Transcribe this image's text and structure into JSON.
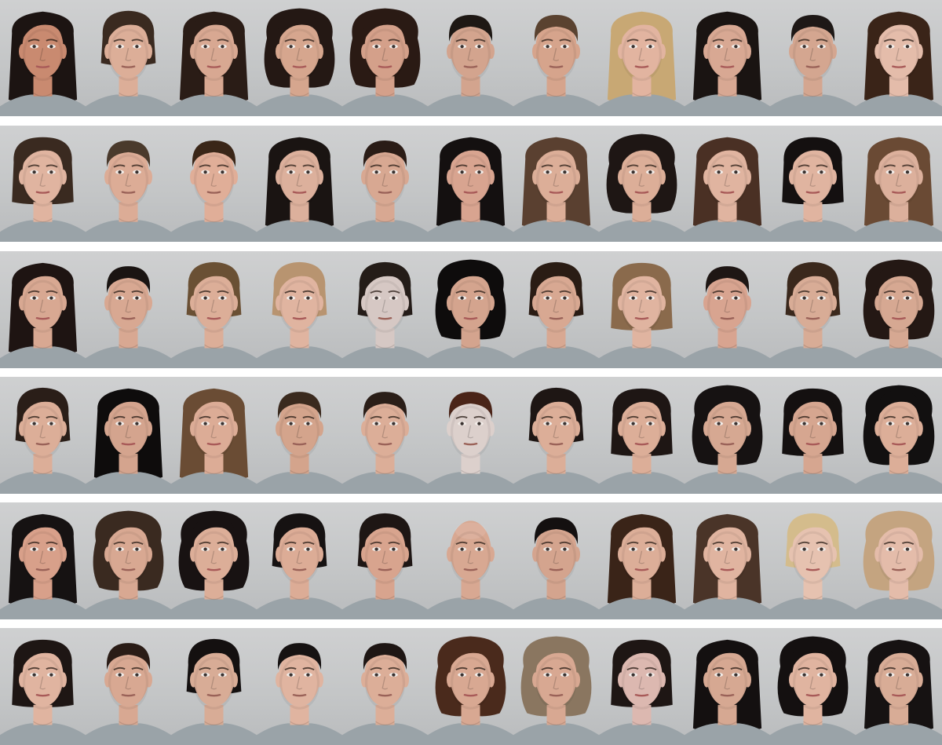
{
  "image": {
    "kind": "portrait-mosaic",
    "rows": 6,
    "columns": 11,
    "background_color": "#c8c9ca",
    "separator_color": "#ffffff",
    "shirt_color": "#9aa3a8"
  },
  "faces": [
    [
      {
        "sex": "f",
        "skin": "#c98a70",
        "hair": "#1c1412",
        "style": "long"
      },
      {
        "sex": "m",
        "skin": "#dcae98",
        "hair": "#3a2a20",
        "style": "medium"
      },
      {
        "sex": "f",
        "skin": "#d8a892",
        "hair": "#2a1c16",
        "style": "long"
      },
      {
        "sex": "f",
        "skin": "#d6a68e",
        "hair": "#241814",
        "style": "curly"
      },
      {
        "sex": "f",
        "skin": "#d4a08a",
        "hair": "#2a1a14",
        "style": "curly"
      },
      {
        "sex": "m",
        "skin": "#d3a48e",
        "hair": "#1e1814",
        "style": "short"
      },
      {
        "sex": "m",
        "skin": "#d6a48c",
        "hair": "#5a4230",
        "style": "short"
      },
      {
        "sex": "f",
        "skin": "#e2b4a0",
        "hair": "#c8a874",
        "style": "long"
      },
      {
        "sex": "f",
        "skin": "#d8a893",
        "hair": "#1a1412",
        "style": "long"
      },
      {
        "sex": "m",
        "skin": "#d4a690",
        "hair": "#1e1816",
        "style": "short"
      },
      {
        "sex": "f",
        "skin": "#e4bcaa",
        "hair": "#3a2418",
        "style": "long"
      }
    ],
    [
      {
        "sex": "f",
        "skin": "#e0b4a0",
        "hair": "#3a2a20",
        "style": "bob"
      },
      {
        "sex": "m",
        "skin": "#dcac96",
        "hair": "#4a3a2c",
        "style": "short"
      },
      {
        "sex": "m",
        "skin": "#e0ae98",
        "hair": "#3a2618",
        "style": "short"
      },
      {
        "sex": "f",
        "skin": "#dcb09c",
        "hair": "#1a1412",
        "style": "long"
      },
      {
        "sex": "m",
        "skin": "#d8a892",
        "hair": "#2a1c16",
        "style": "short"
      },
      {
        "sex": "f",
        "skin": "#d8a490",
        "hair": "#141010",
        "style": "long"
      },
      {
        "sex": "f",
        "skin": "#dcae98",
        "hair": "#5a4030",
        "style": "long"
      },
      {
        "sex": "f",
        "skin": "#dcae98",
        "hair": "#1e1614",
        "style": "curly"
      },
      {
        "sex": "f",
        "skin": "#e0b4a0",
        "hair": "#4a3024",
        "style": "long"
      },
      {
        "sex": "f",
        "skin": "#e0b4a0",
        "hair": "#141010",
        "style": "bob"
      },
      {
        "sex": "f",
        "skin": "#dcb09c",
        "hair": "#6a4a34",
        "style": "long"
      }
    ],
    [
      {
        "sex": "f",
        "skin": "#d8a892",
        "hair": "#1e1412",
        "style": "long"
      },
      {
        "sex": "m",
        "skin": "#d8a892",
        "hair": "#1a1412",
        "style": "short"
      },
      {
        "sex": "f",
        "skin": "#dcae98",
        "hair": "#6a5034",
        "style": "medium"
      },
      {
        "sex": "f",
        "skin": "#e0b4a0",
        "hair": "#b89470",
        "style": "medium"
      },
      {
        "sex": "m",
        "skin": "#d6c8c4",
        "hair": "#241c18",
        "style": "medium"
      },
      {
        "sex": "f",
        "skin": "#d4a48e",
        "hair": "#0e0c0c",
        "style": "curly"
      },
      {
        "sex": "m",
        "skin": "#d8a892",
        "hair": "#2a1c14",
        "style": "medium"
      },
      {
        "sex": "f",
        "skin": "#e0b4a0",
        "hair": "#8a6a4c",
        "style": "bob"
      },
      {
        "sex": "m",
        "skin": "#d8a490",
        "hair": "#1e1614",
        "style": "short"
      },
      {
        "sex": "m",
        "skin": "#d8ac96",
        "hair": "#3a281c",
        "style": "medium"
      },
      {
        "sex": "f",
        "skin": "#d6a892",
        "hair": "#241814",
        "style": "curly"
      }
    ],
    [
      {
        "sex": "m",
        "skin": "#dcae98",
        "hair": "#2a1e18",
        "style": "medium"
      },
      {
        "sex": "f",
        "skin": "#d4a48e",
        "hair": "#0e0c0c",
        "style": "long"
      },
      {
        "sex": "f",
        "skin": "#dcac96",
        "hair": "#6a4c34",
        "style": "long"
      },
      {
        "sex": "m",
        "skin": "#d4a48c",
        "hair": "#3a2a1e",
        "style": "short"
      },
      {
        "sex": "m",
        "skin": "#dcae98",
        "hair": "#2a1e18",
        "style": "short"
      },
      {
        "sex": "m",
        "skin": "#dcd0cc",
        "hair": "#4a2418",
        "style": "short"
      },
      {
        "sex": "m",
        "skin": "#dcae98",
        "hair": "#1e1614",
        "style": "medium"
      },
      {
        "sex": "f",
        "skin": "#dcae98",
        "hair": "#1e1614",
        "style": "bob"
      },
      {
        "sex": "m",
        "skin": "#d6a892",
        "hair": "#161212",
        "style": "curly"
      },
      {
        "sex": "f",
        "skin": "#d6a690",
        "hair": "#141010",
        "style": "bob"
      },
      {
        "sex": "f",
        "skin": "#dcae98",
        "hair": "#121010",
        "style": "curly"
      }
    ],
    [
      {
        "sex": "m",
        "skin": "#d8a08a",
        "hair": "#161212",
        "style": "long"
      },
      {
        "sex": "m",
        "skin": "#d8a892",
        "hair": "#3a2a20",
        "style": "curly"
      },
      {
        "sex": "f",
        "skin": "#dcae98",
        "hair": "#181212",
        "style": "curly"
      },
      {
        "sex": "m",
        "skin": "#dcac96",
        "hair": "#161212",
        "style": "medium"
      },
      {
        "sex": "m",
        "skin": "#d8a48e",
        "hair": "#1e1614",
        "style": "medium"
      },
      {
        "sex": "m",
        "skin": "#d8a892",
        "hair": "#d8a892",
        "style": "bald"
      },
      {
        "sex": "m",
        "skin": "#d4a48e",
        "hair": "#141010",
        "style": "short"
      },
      {
        "sex": "f",
        "skin": "#dcae98",
        "hair": "#3a2418",
        "style": "long"
      },
      {
        "sex": "f",
        "skin": "#e0b4a0",
        "hair": "#4a3428",
        "style": "long"
      },
      {
        "sex": "f",
        "skin": "#e6c2b0",
        "hair": "#d4bc8c",
        "style": "medium"
      },
      {
        "sex": "m",
        "skin": "#e4bcaa",
        "hair": "#c4a480",
        "style": "curly"
      }
    ],
    [
      {
        "sex": "f",
        "skin": "#e0b4a0",
        "hair": "#1e1614",
        "style": "bob"
      },
      {
        "sex": "m",
        "skin": "#d8a892",
        "hair": "#2a1c16",
        "style": "short"
      },
      {
        "sex": "m",
        "skin": "#d8ac96",
        "hair": "#141010",
        "style": "medium"
      },
      {
        "sex": "m",
        "skin": "#e0b4a0",
        "hair": "#161212",
        "style": "short"
      },
      {
        "sex": "m",
        "skin": "#dcae98",
        "hair": "#1e1614",
        "style": "short"
      },
      {
        "sex": "f",
        "skin": "#d8a892",
        "hair": "#4a2a1c",
        "style": "curly"
      },
      {
        "sex": "m",
        "skin": "#d8a892",
        "hair": "#8a7660",
        "style": "curly"
      },
      {
        "sex": "f",
        "skin": "#dcb8b0",
        "hair": "#1e1614",
        "style": "bob"
      },
      {
        "sex": "m",
        "skin": "#d6a892",
        "hair": "#141010",
        "style": "long"
      },
      {
        "sex": "f",
        "skin": "#e0b4a0",
        "hair": "#141010",
        "style": "curly"
      },
      {
        "sex": "f",
        "skin": "#d8ac96",
        "hair": "#161212",
        "style": "long"
      }
    ]
  ]
}
